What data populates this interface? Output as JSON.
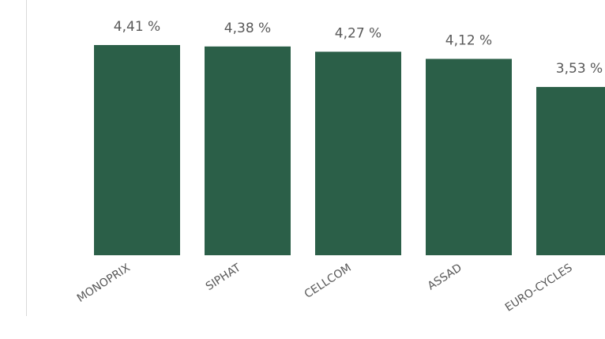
{
  "chart_data": {
    "type": "bar",
    "categories": [
      "MONOPRIX",
      "SIPHAT",
      "CELLCOM",
      "ASSAD",
      "EURO-CYCLES"
    ],
    "values": [
      4.41,
      4.38,
      4.27,
      4.12,
      3.53
    ],
    "value_labels": [
      "4,41 %",
      "4,38 %",
      "4,27 %",
      "4,12 %",
      "3,53 %"
    ],
    "color": "#2b5f48"
  }
}
